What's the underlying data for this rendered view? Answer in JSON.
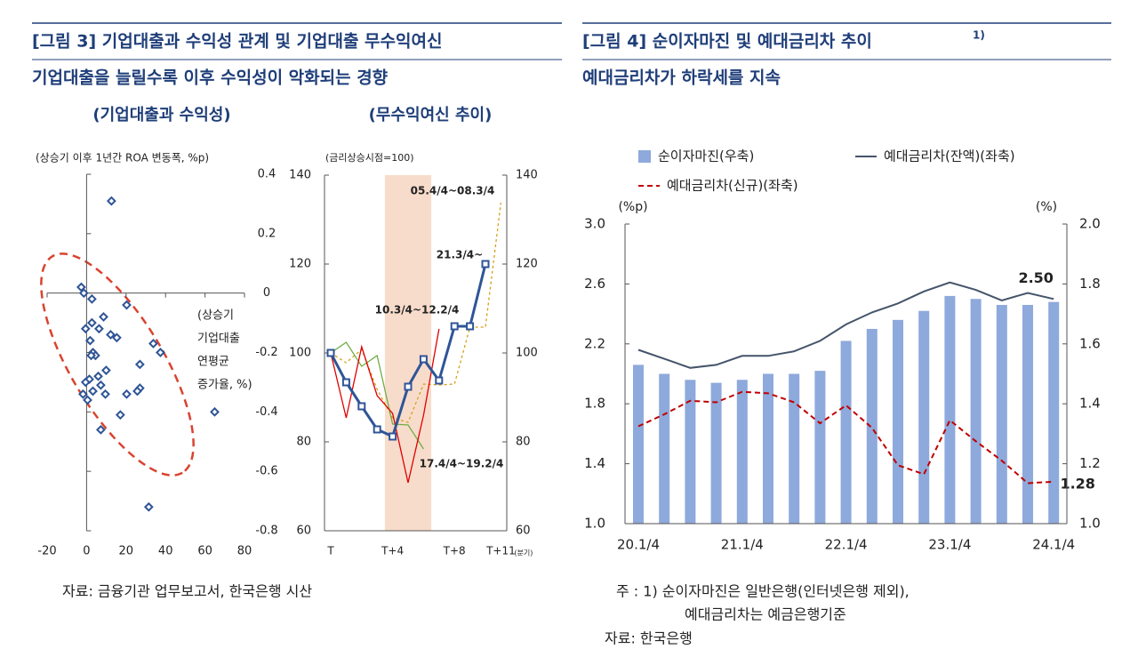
{
  "figures": [
    {
      "title": "[그림 3] 기업대출과 수익성 관계 및 기업대출 무수익여신",
      "subtitle": "기업대출을 늘릴수록 이후 수익성이 악화되는 경향",
      "source": "자료: 금융기관 업무보고서, 한국은행 시산"
    },
    {
      "title": "[그림 4] 순이자마진 및 예대금리차 추이",
      "title_note": "1)",
      "subtitle": "예대금리차가 하락세를 지속",
      "notes": [
        "주 : 1) 순이자마진은 일반은행(인터넷은행 제외),",
        "예대금리차는 예금은행기준"
      ],
      "source": "자료: 한국은행"
    }
  ],
  "chart_data": [
    {
      "type": "scatter",
      "title": "(기업대출과 수익성)",
      "y_label": "(상승기 이후 1년간 ROA 변동폭, %p)",
      "x_label": [
        "(상승기",
        "기업대출",
        "연평균",
        "증가율, %)"
      ],
      "x": [
        12.6,
        -2.7,
        -1.4,
        2.7,
        20.3,
        8.6,
        2.7,
        6.3,
        -0.5,
        12.2,
        15.3,
        1.8,
        33.8,
        3.2,
        4.5,
        2.3,
        37.4,
        27,
        9.9,
        5.9,
        1.4,
        -0.5,
        7.2,
        3.2,
        9.5,
        -1.8,
        20.3,
        27,
        25.7,
        0.5,
        64.9,
        17.1,
        7.2,
        31.5
      ],
      "values": [
        0.31,
        0.02,
        0,
        -0.02,
        -0.04,
        -0.08,
        -0.1,
        -0.12,
        -0.12,
        -0.14,
        -0.15,
        -0.16,
        -0.17,
        -0.2,
        -0.21,
        -0.21,
        -0.2,
        -0.24,
        -0.26,
        -0.28,
        -0.29,
        -0.3,
        -0.31,
        -0.33,
        -0.34,
        -0.34,
        -0.34,
        -0.32,
        -0.33,
        -0.36,
        -0.4,
        -0.41,
        -0.46,
        -0.72
      ],
      "color": "#2f5597",
      "xlim": [
        -20,
        80
      ],
      "xticks": [
        -20,
        0,
        20,
        40,
        60,
        80
      ],
      "ylim": [
        -0.8,
        0.4
      ],
      "yticks": [
        -0.8,
        -0.6,
        -0.4,
        -0.2,
        0,
        0.2,
        0.4
      ]
    },
    {
      "type": "line",
      "title": "(무수익여신 추이)",
      "y_label": "(금리상승시점=100)",
      "x_unit": "(분기)",
      "categories": [
        "T",
        null,
        null,
        null,
        "T+4",
        null,
        null,
        null,
        "T+8",
        null,
        null,
        "T+11"
      ],
      "highlight": [
        3.5,
        6.5
      ],
      "highlight_color": "#f8dccb",
      "ylim": [
        60,
        140
      ],
      "yticks": [
        60,
        80,
        100,
        120,
        140
      ],
      "series": [
        {
          "name": "05.4/4~08.3/4",
          "color": "#d4a017",
          "dash": true,
          "values": [
            100,
            97.8,
            100.8,
            91.8,
            85.4,
            84.4,
            93,
            92.8,
            93,
            105.8,
            105.8,
            133.8
          ]
        },
        {
          "name": "17.4/4~19.2/4",
          "color": "#70ad47",
          "values": [
            100,
            102.4,
            97,
            99.4,
            84,
            83.8,
            78.4,
            null,
            null,
            null,
            null,
            null
          ]
        },
        {
          "name": "10.3/4~12.2/4",
          "color": "#e00000",
          "values": [
            100,
            85.4,
            101.4,
            90.4,
            86.4,
            70.8,
            86,
            105.4,
            null,
            null,
            null,
            null
          ]
        },
        {
          "name": "21.3/4~",
          "color": "#2f5597",
          "marker": true,
          "values": [
            100,
            93.4,
            88,
            82.8,
            81.2,
            92.4,
            98.6,
            93.8,
            106,
            106,
            120,
            null
          ]
        }
      ]
    },
    {
      "type": "combo",
      "y_label": "(%p)",
      "y2_label": "(%)",
      "categories": [
        "20.1/4",
        null,
        null,
        null,
        "21.1/4",
        null,
        null,
        null,
        "22.1/4",
        null,
        null,
        null,
        "23.1/4",
        null,
        null,
        null,
        "24.1/4"
      ],
      "ylim": [
        1,
        3
      ],
      "yticks": [
        {
          "value": 1,
          "label": "1.0"
        },
        1.4,
        1.8,
        2.2,
        2.6,
        {
          "value": 3,
          "label": "3.0"
        }
      ],
      "y2lim": [
        1,
        2
      ],
      "y2ticks": [
        {
          "value": 1,
          "label": "1.0"
        },
        1.2,
        1.4,
        1.6,
        1.8,
        {
          "value": 2,
          "label": "2.0"
        }
      ],
      "series": [
        {
          "name": "순이자마진(우축)",
          "kind": "bar",
          "axis": "y2",
          "color": "#8ea9db",
          "values": [
            1.53,
            1.5,
            1.48,
            1.47,
            1.48,
            1.5,
            1.5,
            1.51,
            1.61,
            1.65,
            1.68,
            1.71,
            1.76,
            1.75,
            1.73,
            1.73,
            1.74
          ]
        },
        {
          "name": "예대금리차(잔액)(좌축)",
          "kind": "line",
          "color": "#44546a",
          "values": [
            2.16,
            2.1,
            2.04,
            2.06,
            2.12,
            2.12,
            2.15,
            2.22,
            2.33,
            2.41,
            2.47,
            2.55,
            2.61,
            2.56,
            2.49,
            2.54,
            2.5
          ],
          "value_labels": [
            null,
            null,
            null,
            null,
            null,
            null,
            null,
            null,
            null,
            null,
            null,
            null,
            null,
            null,
            null,
            null,
            "2.50"
          ]
        },
        {
          "name": "예대금리차(신규)(좌축)",
          "kind": "line",
          "dash": true,
          "color": "#c00000",
          "values": [
            1.65,
            1.73,
            1.82,
            1.81,
            1.88,
            1.87,
            1.81,
            1.67,
            1.79,
            1.64,
            1.39,
            1.33,
            1.69,
            1.55,
            1.42,
            1.27,
            1.28
          ],
          "value_labels": [
            null,
            null,
            null,
            null,
            null,
            null,
            null,
            null,
            null,
            null,
            null,
            null,
            null,
            null,
            null,
            null,
            "1.28"
          ]
        }
      ]
    }
  ]
}
